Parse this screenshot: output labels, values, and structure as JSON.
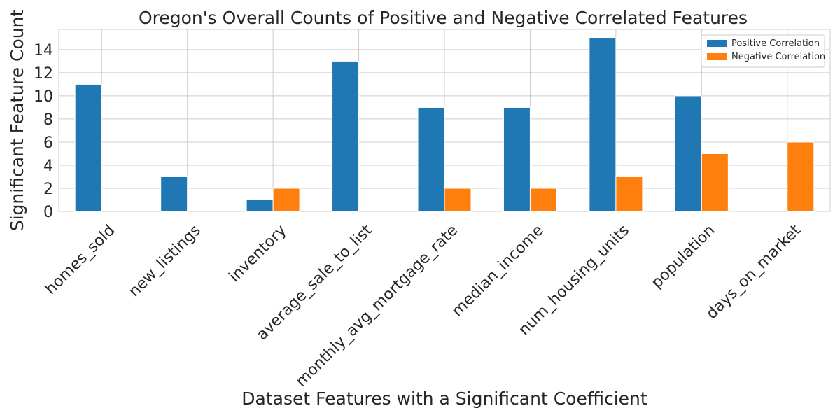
{
  "chart_data": {
    "type": "bar",
    "title": "Oregon's Overall Counts of Positive and Negative Correlated Features",
    "xlabel": "Dataset Features with a Significant Coefficient",
    "ylabel": "Significant Feature Count",
    "categories": [
      "homes_sold",
      "new_listings",
      "inventory",
      "average_sale_to_list",
      "monthly_avg_mortgage_rate",
      "median_income",
      "num_housing_units",
      "population",
      "days_on_market"
    ],
    "series": [
      {
        "name": "Positive Correlation",
        "color": "#1f77b4",
        "values": [
          11,
          3,
          1,
          13,
          9,
          9,
          15,
          10,
          0
        ]
      },
      {
        "name": "Negative Correlation",
        "color": "#ff7f0e",
        "values": [
          0,
          0,
          2,
          0,
          2,
          2,
          3,
          5,
          6
        ]
      }
    ],
    "yticks": [
      "0",
      "2",
      "4",
      "6",
      "8",
      "10",
      "12",
      "14"
    ],
    "ylim": [
      0,
      15.75
    ],
    "grid": true,
    "legend_position": "top-right"
  }
}
